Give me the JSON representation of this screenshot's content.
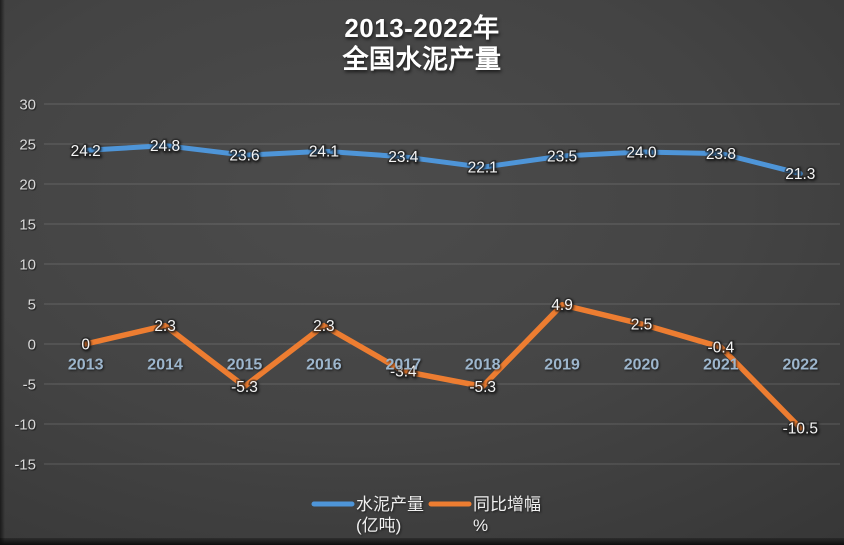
{
  "title": {
    "line1": "2013-2022年",
    "line2": "全国水泥产量"
  },
  "chart_data": {
    "type": "line",
    "title": "2013-2022年 全国水泥产量",
    "categories": [
      "2013",
      "2014",
      "2015",
      "2016",
      "2017",
      "2018",
      "2019",
      "2020",
      "2021",
      "2022"
    ],
    "series": [
      {
        "name": "水泥产量",
        "unit": "(亿吨)",
        "color": "#4E95D8",
        "stroke_width": 5,
        "values": [
          24.2,
          24.8,
          23.6,
          24.1,
          23.4,
          22.1,
          23.5,
          24.0,
          23.8,
          21.3
        ],
        "labels": [
          "24.2",
          "24.8",
          "23.6",
          "24.1",
          "23.4",
          "22.1",
          "23.5",
          "24.0",
          "23.8",
          "21.3"
        ]
      },
      {
        "name": "同比增幅",
        "unit": "%",
        "color": "#ED7D31",
        "stroke_width": 5.5,
        "values": [
          0,
          2.3,
          -5.3,
          2.3,
          -3.4,
          -5.3,
          4.9,
          2.5,
          -0.4,
          -10.5
        ],
        "labels": [
          "0",
          "2.3",
          "-5.3",
          "2.3",
          "-3.4",
          "-5.3",
          "4.9",
          "2.5",
          "-0.4",
          "-10.5"
        ]
      }
    ],
    "xlabel": "",
    "ylabel": "",
    "ylim": [
      -15,
      30
    ],
    "yticks": [
      30,
      25,
      20,
      15,
      10,
      5,
      0,
      -5,
      -10,
      -15
    ],
    "grid": true,
    "legend_position": "bottom"
  },
  "colors": {
    "background_center": "#4b4b4b",
    "background_edge": "#2c2c2c",
    "gridline": "rgba(255,255,255,0.16)",
    "axis_tick_text": "#d9d9d9",
    "category_text": "#9db6cd",
    "data_label_text": "#f5f5f5",
    "title_text": "#ffffff",
    "legend_text": "#f0f0f0"
  }
}
